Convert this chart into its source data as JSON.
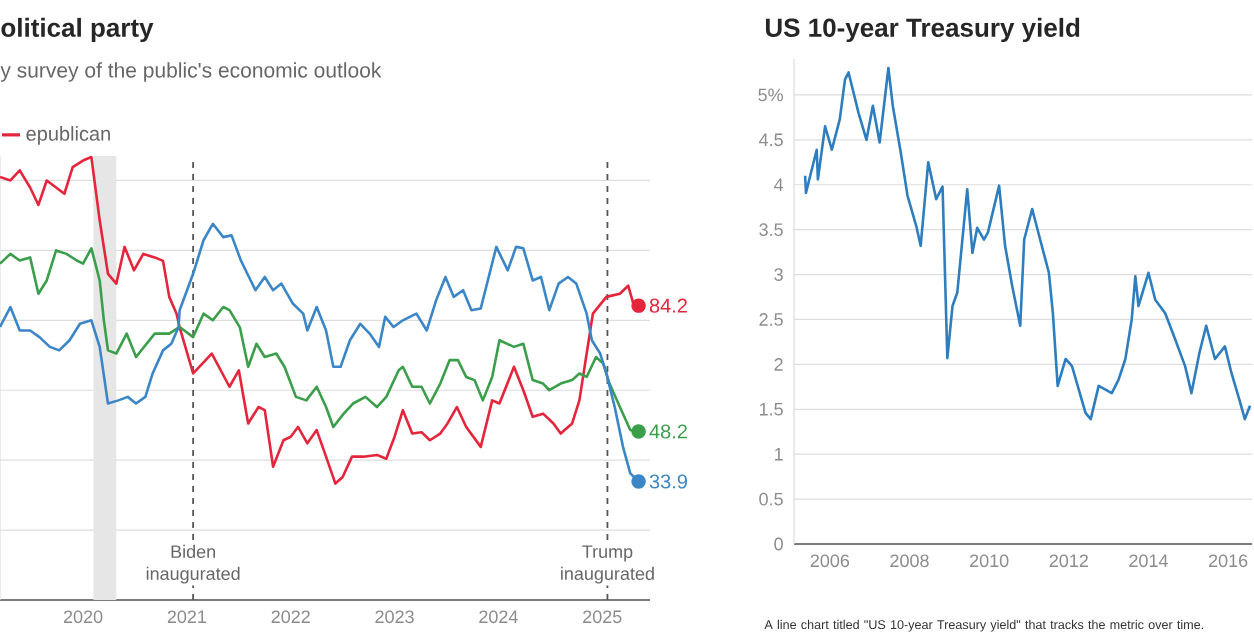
{
  "chart_data": [
    {
      "type": "line",
      "title": "olitical party",
      "subtitle": "y survey of the public's economic outlook",
      "xlim": [
        2019.2,
        2025.46
      ],
      "ylim": [
        0,
        127
      ],
      "xticks": [
        2020,
        2021,
        2022,
        2023,
        2024,
        2025
      ],
      "yticks": [
        {
          "value": 0,
          "label": null
        },
        {
          "value": 20,
          "label": null
        },
        {
          "value": 40,
          "label": null
        },
        {
          "value": 60,
          "label": null
        },
        {
          "value": 80,
          "label": null
        },
        {
          "value": 100,
          "label": null
        },
        {
          "value": 120,
          "label": null
        }
      ],
      "grid": "y",
      "legend": "top left",
      "bands": [
        {
          "axis": "x",
          "from": 2020.1,
          "to": 2020.32,
          "color": "#e6e6e6"
        }
      ],
      "ref_lines": [
        {
          "axis": "x",
          "value": 2021.06,
          "label": "Biden inaugurated"
        },
        {
          "axis": "x",
          "value": 2025.05,
          "label": "Trump inaugurated"
        }
      ],
      "series": [
        {
          "name": "epublican",
          "color": "#e4253c",
          "x": [
            2019.2,
            2019.3,
            2019.39,
            2019.49,
            2019.57,
            2019.65,
            2019.74,
            2019.82,
            2019.9,
            2020.0,
            2020.08,
            2020.16,
            2020.24,
            2020.32,
            2020.4,
            2020.49,
            2020.58,
            2020.69,
            2020.77,
            2020.83,
            2020.9,
            2020.93,
            2021.06,
            2021.24,
            2021.41,
            2021.5,
            2021.59,
            2021.69,
            2021.75,
            2021.83,
            2021.93,
            2022.0,
            2022.07,
            2022.16,
            2022.25,
            2022.34,
            2022.43,
            2022.5,
            2022.59,
            2022.7,
            2022.83,
            2022.92,
            2023.0,
            2023.08,
            2023.17,
            2023.26,
            2023.34,
            2023.44,
            2023.51,
            2023.6,
            2023.69,
            2023.83,
            2023.94,
            2024.01,
            2024.15,
            2024.24,
            2024.33,
            2024.43,
            2024.53,
            2024.6,
            2024.71,
            2024.78,
            2024.85,
            2024.91,
            2025.04,
            2025.17,
            2025.25,
            2025.3,
            2025.35
          ],
          "values": [
            121,
            120,
            122.9,
            118,
            113,
            120,
            118,
            116.2,
            123.8,
            125.7,
            126.7,
            108.6,
            93.3,
            90.5,
            101,
            94.3,
            99,
            98,
            97,
            86.7,
            81.9,
            78,
            64.8,
            70.5,
            61,
            65.7,
            50.5,
            55.2,
            54.3,
            38.1,
            45.7,
            46.7,
            49.5,
            44.8,
            48.6,
            41,
            33.3,
            35.2,
            41,
            41,
            41.5,
            40.4,
            46.7,
            54.3,
            47.6,
            48,
            45.7,
            47.6,
            50.5,
            55.2,
            49.5,
            43.8,
            57.1,
            56.2,
            66.7,
            60,
            52.4,
            53.3,
            50.5,
            47.6,
            50.5,
            57.1,
            70.5,
            81.9,
            86.7,
            87.6,
            89.9,
            84.7,
            84.2
          ],
          "value_labels": [
            null,
            null,
            null,
            null,
            null,
            null,
            null,
            null,
            null,
            null,
            null,
            null,
            null,
            null,
            null,
            null,
            null,
            null,
            null,
            null,
            null,
            null,
            null,
            null,
            null,
            null,
            null,
            null,
            null,
            null,
            null,
            null,
            null,
            null,
            null,
            null,
            null,
            null,
            null,
            null,
            null,
            null,
            null,
            null,
            null,
            null,
            null,
            null,
            null,
            null,
            null,
            null,
            null,
            null,
            null,
            null,
            null,
            null,
            null,
            null,
            null,
            null,
            null,
            null,
            null,
            null,
            null,
            null,
            "84.2"
          ]
        },
        {
          "color": "#3a9e4a",
          "x": [
            2019.2,
            2019.3,
            2019.39,
            2019.49,
            2019.57,
            2019.65,
            2019.74,
            2019.84,
            2019.94,
            2020.0,
            2020.08,
            2020.16,
            2020.2,
            2020.24,
            2020.32,
            2020.42,
            2020.51,
            2020.69,
            2020.83,
            2020.93,
            2021.06,
            2021.16,
            2021.25,
            2021.35,
            2021.41,
            2021.51,
            2021.59,
            2021.67,
            2021.75,
            2021.86,
            2021.94,
            2022.05,
            2022.15,
            2022.25,
            2022.34,
            2022.41,
            2022.51,
            2022.6,
            2022.72,
            2022.83,
            2022.92,
            2023.04,
            2023.08,
            2023.17,
            2023.26,
            2023.34,
            2023.44,
            2023.53,
            2023.61,
            2023.69,
            2023.77,
            2023.85,
            2023.94,
            2024.01,
            2024.15,
            2024.24,
            2024.33,
            2024.43,
            2024.49,
            2024.6,
            2024.71,
            2024.78,
            2024.85,
            2024.94,
            2025.01,
            2025.07,
            2025.17,
            2025.27,
            2025.35
          ],
          "values": [
            96.2,
            99,
            97.1,
            98,
            87.6,
            91.4,
            100,
            99,
            97.1,
            96.2,
            100.6,
            91.4,
            80,
            71.4,
            70.5,
            76.2,
            69.5,
            76.2,
            76.2,
            78.1,
            75.2,
            81.9,
            80,
            83.8,
            82.9,
            78,
            66.7,
            73.3,
            69.5,
            70.5,
            66.7,
            58.1,
            57.1,
            61,
            55.2,
            49.5,
            53.3,
            56.2,
            58.1,
            55.2,
            58.1,
            65.7,
            66.7,
            61,
            61,
            56.2,
            61.9,
            68.6,
            68.6,
            63.8,
            62.9,
            57.1,
            63.8,
            74.3,
            72.4,
            73.3,
            62.9,
            61.9,
            60,
            61.9,
            62.9,
            64.8,
            63.8,
            69.5,
            67.6,
            61.9,
            55.2,
            48.6,
            48.2
          ],
          "value_labels": [
            null,
            null,
            null,
            null,
            null,
            null,
            null,
            null,
            null,
            null,
            null,
            null,
            null,
            null,
            null,
            null,
            null,
            null,
            null,
            null,
            null,
            null,
            null,
            null,
            null,
            null,
            null,
            null,
            null,
            null,
            null,
            null,
            null,
            null,
            null,
            null,
            null,
            null,
            null,
            null,
            null,
            null,
            null,
            null,
            null,
            null,
            null,
            null,
            null,
            null,
            null,
            null,
            null,
            null,
            null,
            null,
            null,
            null,
            null,
            null,
            null,
            null,
            null,
            null,
            null,
            null,
            null,
            null,
            "48.2"
          ]
        },
        {
          "color": "#3b86c6",
          "x": [
            2019.2,
            2019.3,
            2019.39,
            2019.49,
            2019.58,
            2019.68,
            2019.77,
            2019.87,
            2019.97,
            2020.08,
            2020.16,
            2020.24,
            2020.34,
            2020.43,
            2020.51,
            2020.6,
            2020.67,
            2020.77,
            2020.85,
            2020.92,
            2020.93,
            2021.06,
            2021.16,
            2021.25,
            2021.35,
            2021.43,
            2021.52,
            2021.66,
            2021.75,
            2021.83,
            2021.91,
            2022.02,
            2022.12,
            2022.16,
            2022.25,
            2022.34,
            2022.41,
            2022.48,
            2022.57,
            2022.67,
            2022.76,
            2022.85,
            2022.91,
            2022.99,
            2023.08,
            2023.21,
            2023.31,
            2023.4,
            2023.49,
            2023.57,
            2023.66,
            2023.74,
            2023.83,
            2023.98,
            2024.09,
            2024.17,
            2024.24,
            2024.33,
            2024.41,
            2024.49,
            2024.58,
            2024.67,
            2024.75,
            2024.85,
            2024.9,
            2024.98,
            2025.04,
            2025.12,
            2025.2,
            2025.27,
            2025.35
          ],
          "values": [
            78.1,
            83.8,
            77.1,
            77.1,
            75.2,
            72.4,
            71.4,
            74.3,
            79,
            80,
            72.4,
            56.2,
            57.1,
            58.1,
            56.2,
            58.1,
            64.8,
            71.4,
            73.3,
            78.1,
            82.9,
            93.3,
            102.9,
            107.6,
            103.8,
            104.3,
            97.1,
            88.6,
            92.4,
            88.6,
            90.5,
            84.8,
            81.9,
            77.1,
            83.8,
            77.1,
            66.7,
            66.7,
            74.3,
            79,
            76.2,
            72.4,
            81,
            78.1,
            80,
            81.9,
            77.1,
            85.7,
            92.4,
            86.7,
            88.6,
            82.9,
            83.4,
            101,
            94.3,
            101,
            100.6,
            91.4,
            92.4,
            82.9,
            90.5,
            92.4,
            90.5,
            81.9,
            74.3,
            70.5,
            64.8,
            55.2,
            43.8,
            36.2,
            33.9
          ],
          "value_labels": [
            null,
            null,
            null,
            null,
            null,
            null,
            null,
            null,
            null,
            null,
            null,
            null,
            null,
            null,
            null,
            null,
            null,
            null,
            null,
            null,
            null,
            null,
            null,
            null,
            null,
            null,
            null,
            null,
            null,
            null,
            null,
            null,
            null,
            null,
            null,
            null,
            null,
            null,
            null,
            null,
            null,
            null,
            null,
            null,
            null,
            null,
            null,
            null,
            null,
            null,
            null,
            null,
            null,
            null,
            null,
            null,
            null,
            null,
            null,
            null,
            null,
            null,
            null,
            null,
            null,
            null,
            null,
            null,
            null,
            null,
            "33.9"
          ]
        }
      ]
    },
    {
      "type": "line",
      "title": "US 10-year Treasury yield",
      "annotations": [
        "A line chart titled \"US 10-year Treasury yield\" that tracks the metric over time."
      ],
      "xlim": [
        2005.1,
        2016.6
      ],
      "ylim": [
        0,
        5.4
      ],
      "xticks": [
        2006,
        2008,
        2010,
        2012,
        2014,
        2016
      ],
      "yticks": [
        0,
        0.5,
        1,
        1.5,
        2,
        2.5,
        3,
        3.5,
        4,
        4.5,
        {
          "value": 5,
          "label": "5%"
        }
      ],
      "grid": "y",
      "series": [
        {
          "color": "#2e7ebf",
          "x": [
            2005.38,
            2005.4,
            2005.67,
            2005.7,
            2005.88,
            2006.05,
            2006.25,
            2006.38,
            2006.47,
            2006.72,
            2006.92,
            2007.08,
            2007.25,
            2007.47,
            2007.58,
            2007.78,
            2007.95,
            2008.17,
            2008.28,
            2008.47,
            2008.67,
            2008.83,
            2008.95,
            2009.08,
            2009.2,
            2009.45,
            2009.58,
            2009.7,
            2009.87,
            2009.97,
            2010.25,
            2010.4,
            2010.58,
            2010.78,
            2010.88,
            2011.08,
            2011.28,
            2011.5,
            2011.6,
            2011.72,
            2011.92,
            2012.08,
            2012.42,
            2012.55,
            2012.75,
            2013.08,
            2013.25,
            2013.42,
            2013.58,
            2013.67,
            2013.75,
            2014.0,
            2014.17,
            2014.42,
            2014.67,
            2014.92,
            2015.08,
            2015.28,
            2015.45,
            2015.67,
            2015.92,
            2016.08,
            2016.28,
            2016.42,
            2016.55
          ],
          "values": [
            4.1,
            3.91,
            4.39,
            4.06,
            4.65,
            4.39,
            4.73,
            5.17,
            5.25,
            4.8,
            4.5,
            4.88,
            4.47,
            5.3,
            4.88,
            4.36,
            3.88,
            3.54,
            3.32,
            4.25,
            3.84,
            3.98,
            2.07,
            2.65,
            2.8,
            3.95,
            3.24,
            3.52,
            3.39,
            3.47,
            3.99,
            3.32,
            2.87,
            2.43,
            3.39,
            3.73,
            3.39,
            3.02,
            2.57,
            1.76,
            2.06,
            1.98,
            1.46,
            1.39,
            1.76,
            1.68,
            1.83,
            2.06,
            2.5,
            2.98,
            2.65,
            3.02,
            2.72,
            2.57,
            2.28,
            1.98,
            1.68,
            2.13,
            2.43,
            2.06,
            2.2,
            1.91,
            1.61,
            1.39,
            1.54
          ]
        }
      ]
    }
  ]
}
